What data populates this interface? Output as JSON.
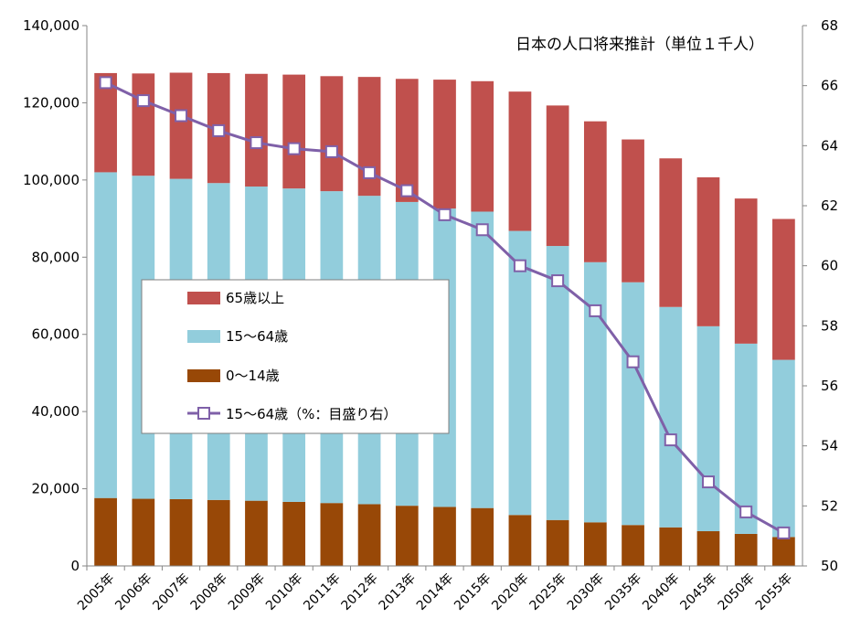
{
  "chart_data": {
    "type": "bar",
    "stacked": true,
    "title": "日本の人口将来推計（単位１千人）",
    "categories": [
      "2005年",
      "2006年",
      "2007年",
      "2008年",
      "2009年",
      "2010年",
      "2011年",
      "2012年",
      "2013年",
      "2014年",
      "2015年",
      "2020年",
      "2025年",
      "2030年",
      "2035年",
      "2040年",
      "2045年",
      "2050年",
      "2055年"
    ],
    "series": [
      {
        "name": "0〜14歳",
        "color": "#984807",
        "values": [
          17600,
          17400,
          17300,
          17100,
          16900,
          16600,
          16300,
          16000,
          15600,
          15300,
          15000,
          13200,
          11900,
          11300,
          10600,
          10000,
          9000,
          8300,
          7500
        ]
      },
      {
        "name": "15〜64歳",
        "color": "#92CDDC",
        "values": [
          84400,
          83700,
          83000,
          82100,
          81400,
          81200,
          80800,
          79900,
          78700,
          77300,
          76800,
          73600,
          71000,
          67400,
          62900,
          57100,
          53100,
          49300,
          45900
        ]
      },
      {
        "name": "65歳以上",
        "color": "#C0504D",
        "values": [
          25700,
          26500,
          27500,
          28500,
          29200,
          29500,
          29800,
          30800,
          31900,
          33400,
          33800,
          36100,
          36400,
          36500,
          37000,
          38500,
          38600,
          37600,
          36500
        ]
      }
    ],
    "line_series": {
      "name": "15〜64歳（%：目盛り右）",
      "color": "#7F60A8",
      "axis": "right",
      "values": [
        66.1,
        65.5,
        65.0,
        64.5,
        64.1,
        63.9,
        63.8,
        63.1,
        62.5,
        61.7,
        61.2,
        60.0,
        59.5,
        58.5,
        56.8,
        54.2,
        52.8,
        51.8,
        51.1
      ]
    },
    "ylim": [
      0,
      140000
    ],
    "yticks": [
      "0",
      "20,000",
      "40,000",
      "60,000",
      "80,000",
      "100,000",
      "120,000",
      "140,000"
    ],
    "y2lim": [
      50,
      68
    ],
    "y2ticks": [
      "50",
      "52",
      "54",
      "56",
      "58",
      "60",
      "62",
      "64",
      "66",
      "68"
    ],
    "legend": {
      "position": "left-center",
      "items": [
        "65歳以上",
        "15〜64歳",
        "0〜14歳",
        "15〜64歳（%：目盛り右）"
      ]
    }
  }
}
